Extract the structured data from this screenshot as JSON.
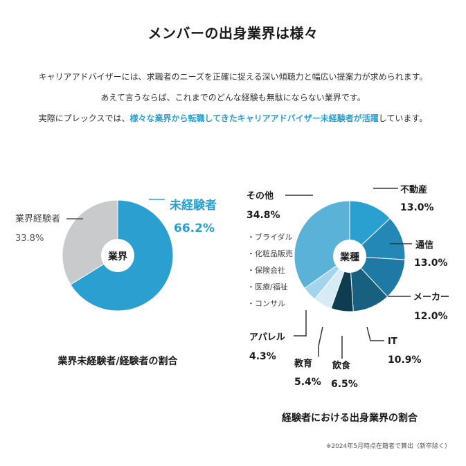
{
  "title": "メンバーの出身業界は様々",
  "intro": {
    "line1": "キャリアアドバイザーには、求職者のニーズを正確に捉える深い傾聴力と幅広い提案力が求められます。",
    "line2": "あえて言うならば、これまでのどんな経験も無駄にならない業界です。",
    "line3_pre": "実際にプレックスでは、",
    "line3_highlight": "様々な業界から転職してきたキャリアアドバイザー未経験者が活躍",
    "line3_post": "しています。"
  },
  "colors": {
    "highlight": "#2a9fd0",
    "left_main": "#2a9fd0",
    "left_other": "#c8cacc",
    "right": [
      "#2aa0d0",
      "#2388b5",
      "#1e7aa4",
      "#17607f",
      "#0f3d50",
      "#d6ebf6",
      "#a3d4ee",
      "#5ab2d8"
    ]
  },
  "chart_data": [
    {
      "type": "pie",
      "title": "業界未経験者/経験者の割合",
      "center_label": "業界",
      "slices": [
        {
          "label": "未経験者",
          "value": 66.2,
          "display": "66.2%"
        },
        {
          "label": "業界経験者",
          "value": 33.8,
          "display": "33.8%"
        }
      ]
    },
    {
      "type": "pie",
      "title": "経験者における出身業界の割合",
      "center_label": "業種",
      "slices": [
        {
          "label": "不動産",
          "value": 13.0,
          "display": "13.0%"
        },
        {
          "label": "通信",
          "value": 13.0,
          "display": "13.0%"
        },
        {
          "label": "メーカー",
          "value": 12.0,
          "display": "12.0%"
        },
        {
          "label": "IT",
          "value": 10.9,
          "display": "10.9%"
        },
        {
          "label": "飲食",
          "value": 6.5,
          "display": "6.5%"
        },
        {
          "label": "教育",
          "value": 5.4,
          "display": "5.4%"
        },
        {
          "label": "アパレル",
          "value": 4.3,
          "display": "4.3%"
        },
        {
          "label": "その他",
          "value": 34.8,
          "display": "34.8%"
        }
      ],
      "other_breakdown": [
        "・ブライダル",
        "・化粧品販売",
        "・保険会社",
        "・医療/福祉",
        "・コンサル"
      ]
    }
  ],
  "footnote": "※2024年5月時点在籍者で算出（新卒除く）"
}
